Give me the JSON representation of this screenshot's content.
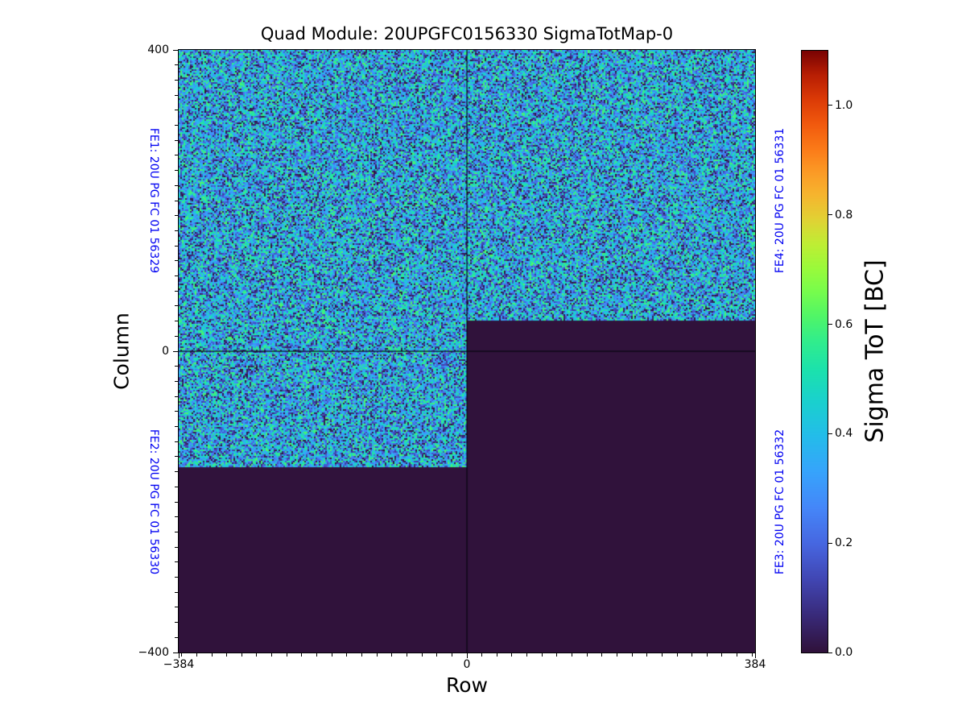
{
  "title": "Quad Module: 20UPGFC0156330 SigmaTotMap-0",
  "chart_data": {
    "type": "heatmap",
    "title": "Quad Module: 20UPGFC0156330 SigmaTotMap-0",
    "xlabel": "Row",
    "ylabel": "Column",
    "x_range": [
      -384,
      384
    ],
    "y_range": [
      -400,
      400
    ],
    "x_ticks": [
      {
        "value": -384,
        "label": "−384"
      },
      {
        "value": 0,
        "label": "0"
      },
      {
        "value": 384,
        "label": "384"
      }
    ],
    "y_ticks": [
      {
        "value": 400,
        "label": "400"
      },
      {
        "value": 0,
        "label": "0"
      },
      {
        "value": -400,
        "label": "−400"
      }
    ],
    "minor_tick_step": 20,
    "grid": false,
    "colormap": "turbo",
    "colormap_stops": [
      [
        0.0,
        "#30123b"
      ],
      [
        0.06,
        "#392a79"
      ],
      [
        0.12,
        "#4146b3"
      ],
      [
        0.18,
        "#4767e1"
      ],
      [
        0.24,
        "#4587f9"
      ],
      [
        0.3,
        "#37a4fc"
      ],
      [
        0.36,
        "#24bdea"
      ],
      [
        0.42,
        "#1ad2cd"
      ],
      [
        0.47,
        "#1ce2ad"
      ],
      [
        0.52,
        "#33ee8b"
      ],
      [
        0.56,
        "#52f667"
      ],
      [
        0.6,
        "#78fd4d"
      ],
      [
        0.64,
        "#9cfa3b"
      ],
      [
        0.68,
        "#c0ee34"
      ],
      [
        0.72,
        "#e2d234"
      ],
      [
        0.76,
        "#f6b62f"
      ],
      [
        0.8,
        "#fc9a26"
      ],
      [
        0.84,
        "#fb7918"
      ],
      [
        0.88,
        "#f1590e"
      ],
      [
        0.92,
        "#dc3b07"
      ],
      [
        0.96,
        "#b91f04"
      ],
      [
        1.0,
        "#7a0403"
      ]
    ],
    "vmin": 0.0,
    "vmax": 1.1,
    "colorbar": {
      "label": "Sigma ToT [BC]",
      "ticks": [
        {
          "value": 1.0,
          "label": "1.0"
        },
        {
          "value": 0.8,
          "label": "0.8"
        },
        {
          "value": 0.6,
          "label": "0.6"
        },
        {
          "value": 0.4,
          "label": "0.4"
        },
        {
          "value": 0.2,
          "label": "0.2"
        },
        {
          "value": 0.0,
          "label": "0.0"
        }
      ]
    },
    "active_regions": [
      {
        "name": "left-half-active (FE1 + upper FE2)",
        "rows": [
          -384,
          0
        ],
        "cols": [
          -154,
          400
        ]
      },
      {
        "name": "right-half-active (upper FE4)",
        "rows": [
          0,
          384
        ],
        "cols": [
          40,
          400
        ]
      }
    ],
    "dead_region_value": 0.0,
    "noise": {
      "value_min": 0.0,
      "value_max": 0.62,
      "dark_speck_fraction": 0.13
    },
    "quadrant_divider_lines": {
      "row": 0,
      "col": 0
    },
    "fe_labels": [
      {
        "id": "FE1",
        "text": "FE1: 20U PG FC 01 56329",
        "side": "left",
        "position": "top"
      },
      {
        "id": "FE2",
        "text": "FE2: 20U PG FC 01 56330",
        "side": "left",
        "position": "bottom"
      },
      {
        "id": "FE4",
        "text": "FE4: 20U PG FC 01 56331",
        "side": "right",
        "position": "top"
      },
      {
        "id": "FE3",
        "text": "FE3: 20U PG FC 01 56332",
        "side": "right",
        "position": "bottom"
      }
    ],
    "fe_label_color": "#0000f2",
    "text_color": "#000000",
    "background": "#ffffff"
  }
}
